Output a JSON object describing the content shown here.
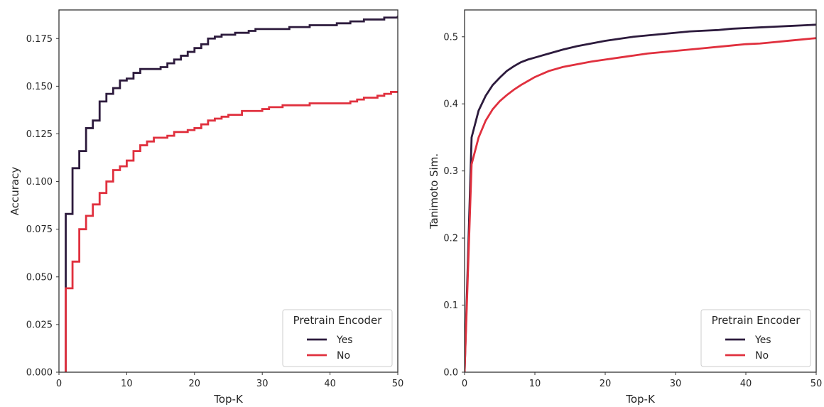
{
  "chart_data": [
    {
      "type": "line",
      "step": true,
      "xlabel": "Top-K",
      "ylabel": "Accuracy",
      "xlim": [
        0,
        50
      ],
      "ylim": [
        0,
        0.19
      ],
      "xticks": [
        0,
        10,
        20,
        30,
        40,
        50
      ],
      "yticks": [
        0.0,
        0.025,
        0.05,
        0.075,
        0.1,
        0.125,
        0.15,
        0.175
      ],
      "ytick_labels": [
        "0.000",
        "0.025",
        "0.050",
        "0.075",
        "0.100",
        "0.125",
        "0.150",
        "0.175"
      ],
      "xtick_labels": [
        "0",
        "10",
        "20",
        "30",
        "40",
        "50"
      ],
      "grid": false,
      "legend": {
        "title": "Pretrain Encoder",
        "placement": "lower-right"
      },
      "series": [
        {
          "name": "Yes",
          "color": "#2d1b3d",
          "x": [
            1,
            2,
            3,
            4,
            5,
            6,
            7,
            8,
            9,
            10,
            11,
            12,
            13,
            14,
            15,
            16,
            17,
            18,
            19,
            20,
            21,
            22,
            23,
            24,
            25,
            26,
            27,
            28,
            29,
            30,
            31,
            32,
            33,
            34,
            35,
            36,
            37,
            38,
            39,
            40,
            41,
            42,
            43,
            44,
            45,
            46,
            47,
            48,
            49,
            50
          ],
          "y": [
            0.083,
            0.107,
            0.116,
            0.128,
            0.132,
            0.142,
            0.146,
            0.149,
            0.153,
            0.154,
            0.157,
            0.159,
            0.159,
            0.159,
            0.16,
            0.162,
            0.164,
            0.166,
            0.168,
            0.17,
            0.172,
            0.175,
            0.176,
            0.177,
            0.177,
            0.178,
            0.178,
            0.179,
            0.18,
            0.18,
            0.18,
            0.18,
            0.18,
            0.181,
            0.181,
            0.181,
            0.182,
            0.182,
            0.182,
            0.182,
            0.183,
            0.183,
            0.184,
            0.184,
            0.185,
            0.185,
            0.185,
            0.186,
            0.186,
            0.187
          ]
        },
        {
          "name": "No",
          "color": "#e0303e",
          "x": [
            1,
            2,
            3,
            4,
            5,
            6,
            7,
            8,
            9,
            10,
            11,
            12,
            13,
            14,
            15,
            16,
            17,
            18,
            19,
            20,
            21,
            22,
            23,
            24,
            25,
            26,
            27,
            28,
            29,
            30,
            31,
            32,
            33,
            34,
            35,
            36,
            37,
            38,
            39,
            40,
            41,
            42,
            43,
            44,
            45,
            46,
            47,
            48,
            49,
            50
          ],
          "y": [
            0.044,
            0.058,
            0.075,
            0.082,
            0.088,
            0.094,
            0.1,
            0.106,
            0.108,
            0.111,
            0.116,
            0.119,
            0.121,
            0.123,
            0.123,
            0.124,
            0.126,
            0.126,
            0.127,
            0.128,
            0.13,
            0.132,
            0.133,
            0.134,
            0.135,
            0.135,
            0.137,
            0.137,
            0.137,
            0.138,
            0.139,
            0.139,
            0.14,
            0.14,
            0.14,
            0.14,
            0.141,
            0.141,
            0.141,
            0.141,
            0.141,
            0.141,
            0.142,
            0.143,
            0.144,
            0.144,
            0.145,
            0.146,
            0.147,
            0.147
          ]
        }
      ]
    },
    {
      "type": "line",
      "step": false,
      "xlabel": "Top-K",
      "ylabel": "Tanimoto Sim.",
      "xlim": [
        0,
        50
      ],
      "ylim": [
        0,
        0.54
      ],
      "xticks": [
        0,
        10,
        20,
        30,
        40,
        50
      ],
      "yticks": [
        0.0,
        0.1,
        0.2,
        0.3,
        0.4,
        0.5
      ],
      "ytick_labels": [
        "0.0",
        "0.1",
        "0.2",
        "0.3",
        "0.4",
        "0.5"
      ],
      "xtick_labels": [
        "0",
        "10",
        "20",
        "30",
        "40",
        "50"
      ],
      "grid": false,
      "legend": {
        "title": "Pretrain Encoder",
        "placement": "lower-right"
      },
      "series": [
        {
          "name": "Yes",
          "color": "#2d1b3d",
          "x": [
            0,
            1,
            2,
            3,
            4,
            5,
            6,
            7,
            8,
            9,
            10,
            12,
            14,
            16,
            18,
            20,
            22,
            24,
            26,
            28,
            30,
            32,
            34,
            36,
            38,
            40,
            42,
            44,
            46,
            48,
            50
          ],
          "y": [
            0.0,
            0.35,
            0.39,
            0.412,
            0.428,
            0.439,
            0.449,
            0.456,
            0.462,
            0.466,
            0.469,
            0.475,
            0.481,
            0.486,
            0.49,
            0.494,
            0.497,
            0.5,
            0.502,
            0.504,
            0.506,
            0.508,
            0.509,
            0.51,
            0.512,
            0.513,
            0.514,
            0.515,
            0.516,
            0.517,
            0.518
          ]
        },
        {
          "name": "No",
          "color": "#e0303e",
          "x": [
            0,
            1,
            2,
            3,
            4,
            5,
            6,
            7,
            8,
            9,
            10,
            12,
            14,
            16,
            18,
            20,
            22,
            24,
            26,
            28,
            30,
            32,
            34,
            36,
            38,
            40,
            42,
            44,
            46,
            48,
            50
          ],
          "y": [
            0.0,
            0.31,
            0.35,
            0.375,
            0.392,
            0.404,
            0.413,
            0.421,
            0.428,
            0.434,
            0.44,
            0.449,
            0.455,
            0.459,
            0.463,
            0.466,
            0.469,
            0.472,
            0.475,
            0.477,
            0.479,
            0.481,
            0.483,
            0.485,
            0.487,
            0.489,
            0.49,
            0.492,
            0.494,
            0.496,
            0.498
          ]
        }
      ]
    }
  ]
}
